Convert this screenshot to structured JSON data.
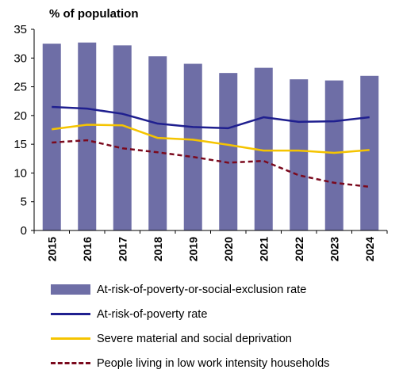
{
  "chart_data": {
    "type": "bar",
    "ylabel": "% of population",
    "ylim": [
      0,
      35
    ],
    "yticks": [
      0,
      5,
      10,
      15,
      20,
      25,
      30,
      35
    ],
    "categories": [
      "2015",
      "2016",
      "2017",
      "2018",
      "2019",
      "2020",
      "2021",
      "2022",
      "2023",
      "2024"
    ],
    "series": [
      {
        "name": "At-risk-of-poverty-or-social-exclusion rate",
        "kind": "bar",
        "color": "#6e6ea6",
        "values": [
          32.5,
          32.7,
          32.2,
          30.3,
          29.0,
          27.4,
          28.3,
          26.3,
          26.1,
          26.9
        ]
      },
      {
        "name": "At-risk-of-poverty rate",
        "kind": "line",
        "color": "#1f1f8f",
        "values": [
          21.5,
          21.2,
          20.3,
          18.6,
          18.0,
          17.8,
          19.7,
          18.9,
          19.0,
          19.7
        ]
      },
      {
        "name": "Severe material and social deprivation",
        "kind": "line",
        "color": "#f5c400",
        "values": [
          17.6,
          18.4,
          18.3,
          16.1,
          15.8,
          14.9,
          13.9,
          13.9,
          13.5,
          14.0
        ]
      },
      {
        "name": "People living in low work intensity households",
        "kind": "dash",
        "color": "#7b0a1e",
        "values": [
          15.3,
          15.7,
          14.3,
          13.6,
          12.8,
          11.8,
          12.1,
          9.6,
          8.3,
          7.6
        ]
      }
    ],
    "grid": false,
    "legend_position": "bottom"
  }
}
